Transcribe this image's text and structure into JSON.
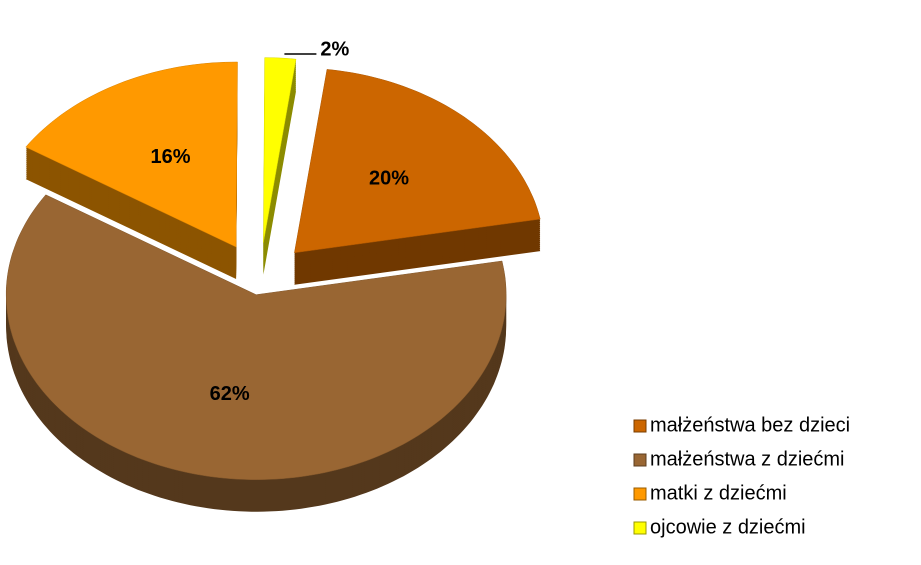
{
  "chart_data": {
    "type": "pie",
    "categories": [
      "małżeństwa bez dzieci",
      "małżeństwa z dziećmi",
      "matki z dziećmi",
      "ojcowie z dziećmi"
    ],
    "values": [
      20,
      62,
      16,
      2
    ],
    "value_labels": [
      "20%",
      "62%",
      "16%",
      "2%"
    ],
    "colors": [
      "#cc6600",
      "#996633",
      "#ff9900",
      "#ffff00"
    ],
    "legend": "bottom-right"
  }
}
